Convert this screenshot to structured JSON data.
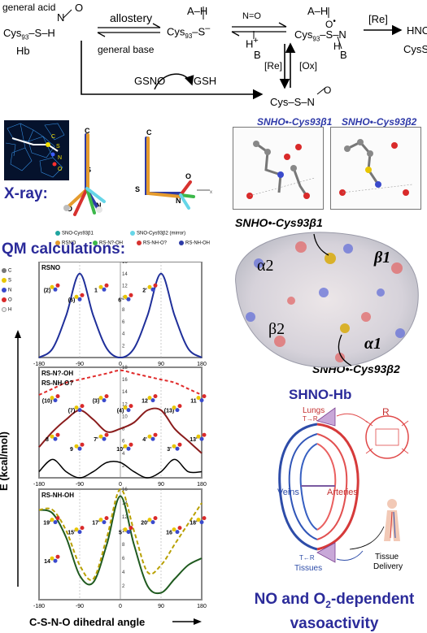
{
  "scheme": {
    "general_acid": "general acid",
    "cys93_sh": "Cys",
    "cys93_sh_sub": "93",
    "cys93_sh_tail": "–S–H",
    "hb": "Hb",
    "no_label": "N",
    "o_label": "O",
    "allostery": "allostery",
    "general_base": "general base",
    "a_h_1": "A–H",
    "cys93_s": "Cys",
    "cys93_s_sub": "93",
    "cys93_s_tail": "–S",
    "h_plus_b": "H",
    "b_label": "B",
    "a_h_2": "A–H",
    "cys93_snoh": "Cys",
    "cys93_snoh_sub": "93",
    "cys93_snoh_tail": "–S–N",
    "re_label": "[Re]",
    "hno": "HNO",
    "cyss": "CysS-",
    "gsno": "GSNO",
    "gsh": "GSH",
    "re2": "[Re]",
    "ox": "[Ox]",
    "cys_sno": "Cys–S–N"
  },
  "xray": {
    "title": "X-ray:",
    "axis_labels": [
      "C",
      "S",
      "N",
      "O",
      "C",
      "S",
      "N",
      "O"
    ],
    "legend": [
      {
        "label": "SNO-Cys93β1",
        "color": "#1fa5a0"
      },
      {
        "label": "SNO-Cys93β2 (mirror)",
        "color": "#66d6e8"
      },
      {
        "label": "RSNO",
        "color": "#e59b2d"
      },
      {
        "label": "RS-N?-OH",
        "color": "#3db84a"
      },
      {
        "label": "RS-NH-O?",
        "color": "#d7322f"
      },
      {
        "label": "RS-NH-OH",
        "color": "#2c3aa6"
      }
    ]
  },
  "structure": {
    "panel1_title": "SNHO•-Cys93β1",
    "panel2_title": "SNHO•-Cys93β2",
    "label_top": "SNHO•-Cys93β1",
    "label_bottom": "SNHO•-Cys93β2",
    "alpha2": "α2",
    "beta1": "β1",
    "beta2": "β2",
    "alpha1": "α1"
  },
  "qm": {
    "title": "QM calculations:",
    "ylabel": "E (kcal/mol)",
    "xlabel": "C-S-N-O dihedral angle",
    "legend_atoms": [
      "C",
      "S",
      "N",
      "O",
      "H"
    ]
  },
  "chart_data": [
    {
      "type": "line",
      "panel_label": "RSNO",
      "x": [
        -180,
        -150,
        -120,
        -90,
        -60,
        -30,
        0,
        30,
        60,
        90,
        120,
        150,
        180
      ],
      "series": [
        {
          "values": [
            0,
            1.5,
            7,
            14,
            7,
            1.5,
            0,
            1.5,
            7,
            14,
            7,
            1.5,
            0
          ]
        }
      ],
      "xlim": [
        -180,
        180
      ],
      "ylim": [
        0,
        16
      ],
      "yticks": [
        0,
        2,
        4,
        6,
        8,
        10,
        12,
        14,
        16
      ],
      "xticks": [
        -180,
        -90,
        0,
        90,
        180
      ],
      "point_labels": [
        "(2)",
        "(6)",
        "1",
        "6'",
        "2'"
      ]
    },
    {
      "type": "line",
      "panel_labels": [
        "RS-N?-OH",
        "RS-NH-O?"
      ],
      "x": [
        -180,
        -150,
        -120,
        -90,
        -60,
        -30,
        0,
        30,
        60,
        90,
        120,
        150,
        180
      ],
      "series": [
        {
          "values": [
            13.5,
            14.5,
            15.5,
            16,
            16.5,
            17,
            17.5,
            17,
            16.5,
            16,
            15.5,
            14.5,
            13.5
          ]
        },
        {
          "values": [
            5,
            7.5,
            9.5,
            11,
            9.5,
            7.5,
            8,
            9,
            11,
            11,
            8,
            6,
            4
          ]
        },
        {
          "values": [
            1,
            3,
            1,
            0,
            1,
            2.5,
            2.5,
            1,
            0,
            1,
            3,
            1,
            1
          ]
        }
      ],
      "xlim": [
        -180,
        180
      ],
      "ylim": [
        0,
        18
      ],
      "yticks": [
        0,
        2,
        4,
        6,
        8,
        10,
        12,
        14,
        16,
        18
      ],
      "xticks": [
        -180,
        -90,
        0,
        90,
        180
      ],
      "point_labels": [
        "(10)",
        "(7)",
        "(3)",
        "(4)",
        "12",
        "(13)",
        "11",
        "8",
        "9",
        "7'",
        "10'",
        "4'",
        "3'",
        "13'"
      ]
    },
    {
      "type": "line",
      "panel_label": "RS-NH-OH",
      "x": [
        -180,
        -150,
        -120,
        -90,
        -60,
        -30,
        0,
        30,
        60,
        90,
        120,
        150,
        180
      ],
      "series": [
        {
          "values": [
            13,
            12.5,
            9,
            3.5,
            2.5,
            8,
            15,
            8,
            2,
            1,
            3,
            5,
            6
          ]
        },
        {
          "values": [
            13,
            13,
            10,
            5,
            3,
            9,
            16,
            10,
            4,
            5,
            8,
            11,
            14
          ]
        }
      ],
      "xlim": [
        -180,
        180
      ],
      "ylim": [
        0,
        16
      ],
      "yticks": [
        0,
        2,
        4,
        6,
        8,
        10,
        12,
        14,
        16
      ],
      "xticks": [
        -180,
        -90,
        0,
        90,
        180
      ],
      "point_labels": [
        "19'",
        "15'",
        "17'",
        "5",
        "20'",
        "16",
        "18'",
        "14"
      ]
    }
  ],
  "shnohb": {
    "title": "SHNO-Hb",
    "lungs": "Lungs",
    "t_r": "T→R",
    "r": "R",
    "veins": "Veins",
    "arteries": "Arteries",
    "tissues": "Tissues",
    "r_t": "T←R",
    "tissue_delivery_1": "Tissue",
    "tissue_delivery_2": "Delivery",
    "footer_1": "NO and O",
    "footer_sub": "2",
    "footer_2": "-dependent",
    "footer_3": "vasoactivity"
  }
}
